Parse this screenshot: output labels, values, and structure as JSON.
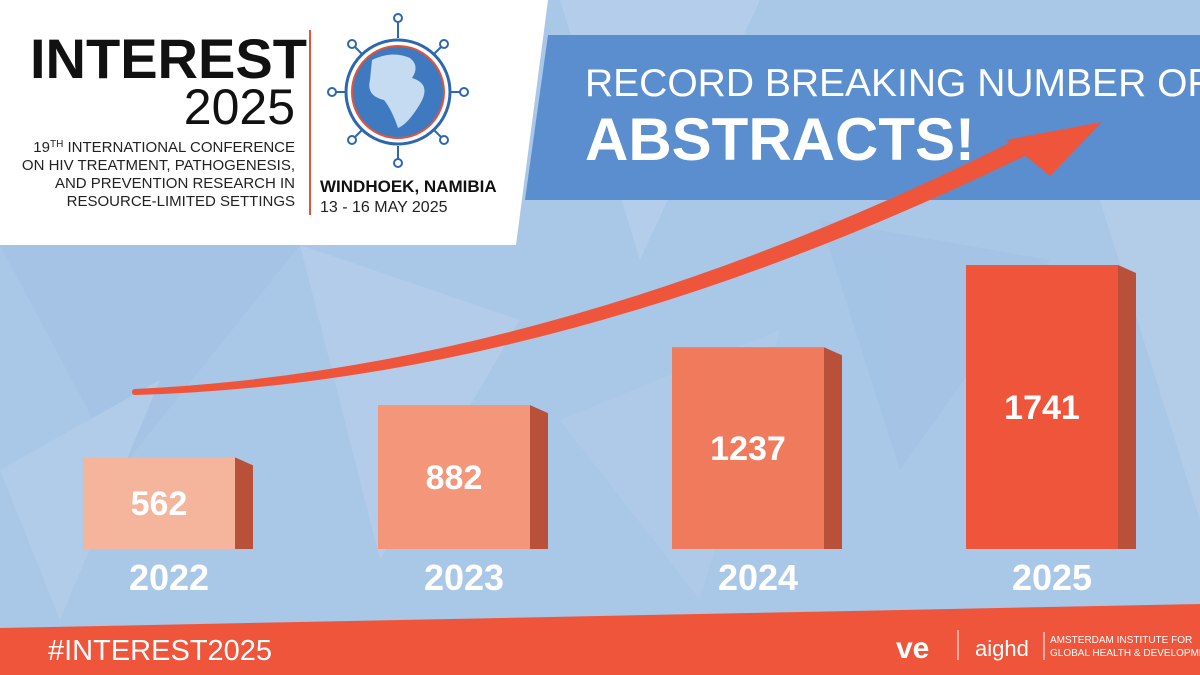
{
  "header": {
    "logo_word": "INTEREST",
    "logo_year": "2025",
    "edition_number": "19",
    "edition_suffix": "TH",
    "conference_lines": [
      " INTERNATIONAL CONFERENCE",
      "ON HIV TREATMENT, PATHOGENESIS,",
      "AND PREVENTION RESEARCH IN",
      "RESOURCE-LIMITED SETTINGS"
    ],
    "location": "WINDHOEK, NAMIBIA",
    "dates": "13 - 16 MAY 2025"
  },
  "headline": {
    "line1": "RECORD BREAKING NUMBER OF",
    "line2": "ABSTRACTS!"
  },
  "chart_data": {
    "type": "bar",
    "categories": [
      "2022",
      "2023",
      "2024",
      "2025"
    ],
    "values": [
      562,
      882,
      1237,
      1741
    ],
    "colors": [
      "#f5b49c",
      "#f4967a",
      "#f07a5c",
      "#ee553b"
    ]
  },
  "footer": {
    "hashtag": "#INTEREST2025",
    "ve_logo": "ve",
    "aighd_logo": "aighd",
    "aighd_lines": [
      "AMSTERDAM INSTITUTE FOR",
      "GLOBAL HEALTH & DEVELOPMENT"
    ]
  }
}
